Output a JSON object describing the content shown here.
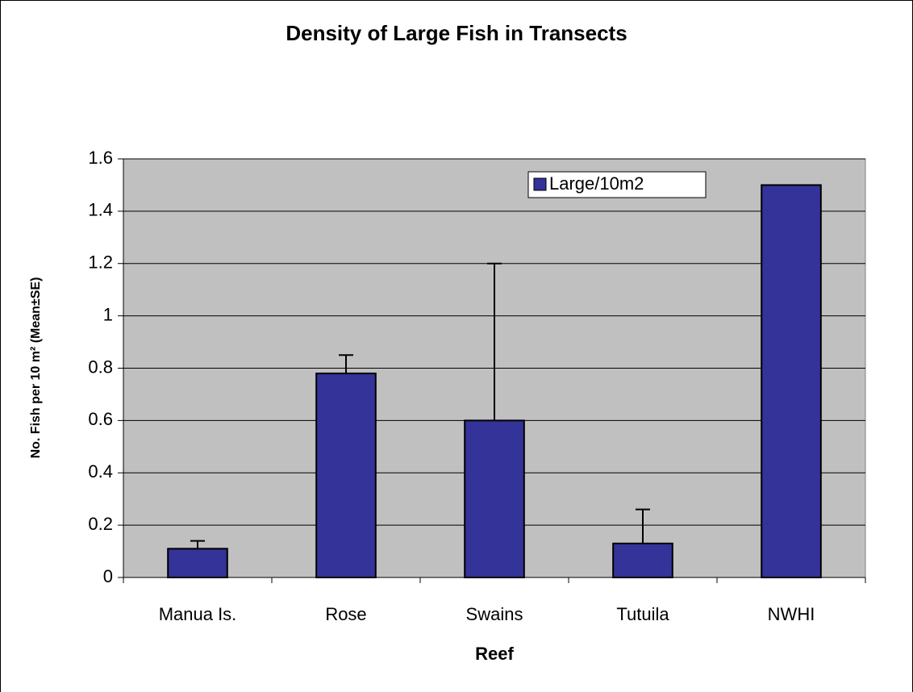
{
  "chart_data": {
    "type": "bar",
    "title": "Density of Large Fish in Transects",
    "x_label": "Reef",
    "y_label": "No. Fish per 10 m² (Mean±SE)",
    "categories": [
      "Manua Is.",
      "Rose",
      "Swains",
      "Tutuila",
      "NWHI"
    ],
    "series": [
      {
        "name": "Large/10m2",
        "color": "#333399",
        "values": [
          0.11,
          0.78,
          0.6,
          0.13,
          1.5
        ],
        "errors": [
          0.03,
          0.07,
          0.6,
          0.13,
          0
        ]
      }
    ],
    "ylim": [
      0,
      1.6
    ],
    "yticks": [
      0,
      0.2,
      0.4,
      0.6,
      0.8,
      1,
      1.2,
      1.4,
      1.6
    ],
    "grid": true,
    "legend": "top-right",
    "plot_background": "#c0c0c0"
  }
}
